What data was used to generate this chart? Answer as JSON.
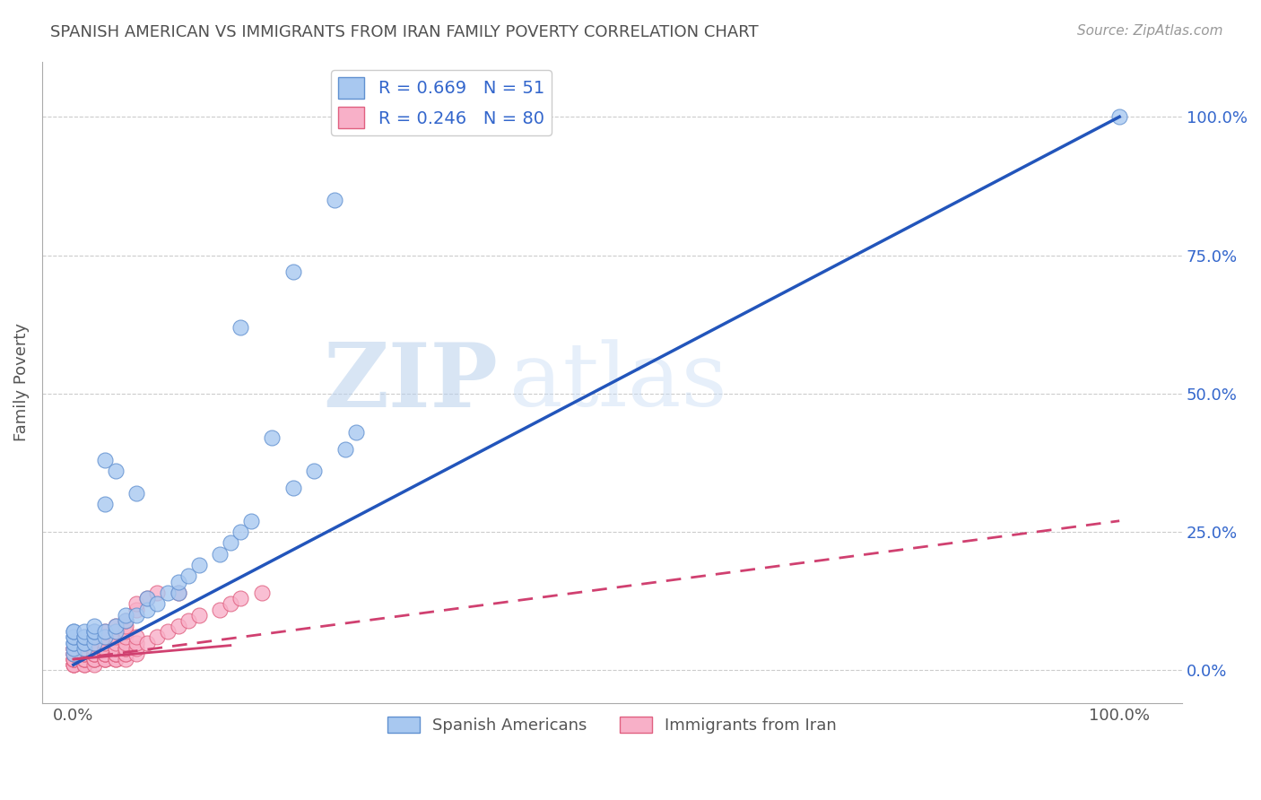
{
  "title": "SPANISH AMERICAN VS IMMIGRANTS FROM IRAN FAMILY POVERTY CORRELATION CHART",
  "source_text": "Source: ZipAtlas.com",
  "ylabel": "Family Poverty",
  "watermark_zip": "ZIP",
  "watermark_atlas": "atlas",
  "blue_R": 0.669,
  "blue_N": 51,
  "pink_R": 0.246,
  "pink_N": 80,
  "blue_color": "#A8C8F0",
  "blue_edge": "#6090D0",
  "pink_color": "#F8B0C8",
  "pink_edge": "#E06080",
  "blue_line_color": "#2255BB",
  "pink_line_color": "#D04070",
  "pink_line_dash_color": "#D06080",
  "background_color": "#FFFFFF",
  "grid_color": "#CCCCCC",
  "title_color": "#505050",
  "legend_text_color": "#3366CC",
  "ytick_labels_right": [
    "0.0%",
    "25.0%",
    "50.0%",
    "75.0%",
    "100.0%"
  ],
  "ytick_values_right": [
    0.0,
    0.25,
    0.5,
    0.75,
    1.0
  ],
  "xtick_labels": [
    "0.0%",
    "100.0%"
  ],
  "xtick_values": [
    0.0,
    1.0
  ],
  "xlim": [
    -0.03,
    1.06
  ],
  "ylim": [
    -0.06,
    1.1
  ],
  "blue_trend_x0": 0.0,
  "blue_trend_y0": 0.01,
  "blue_trend_x1": 1.0,
  "blue_trend_y1": 1.0,
  "pink_trend_x0": 0.0,
  "pink_trend_y0": 0.02,
  "pink_trend_x1": 1.0,
  "pink_trend_y1": 0.27,
  "blue_x": [
    0.0,
    0.0,
    0.0,
    0.0,
    0.0,
    0.0,
    0.0,
    0.0,
    0.01,
    0.01,
    0.01,
    0.01,
    0.01,
    0.01,
    0.02,
    0.02,
    0.02,
    0.02,
    0.02,
    0.03,
    0.03,
    0.03,
    0.03,
    0.04,
    0.04,
    0.04,
    0.05,
    0.05,
    0.06,
    0.06,
    0.07,
    0.07,
    0.08,
    0.09,
    0.1,
    0.1,
    0.11,
    0.12,
    0.14,
    0.15,
    0.16,
    0.17,
    0.19,
    0.21,
    0.23,
    0.26,
    0.27,
    0.16,
    0.21,
    0.25,
    1.0
  ],
  "blue_y": [
    0.03,
    0.04,
    0.05,
    0.05,
    0.06,
    0.06,
    0.07,
    0.07,
    0.04,
    0.05,
    0.05,
    0.06,
    0.06,
    0.07,
    0.05,
    0.06,
    0.07,
    0.07,
    0.08,
    0.06,
    0.07,
    0.3,
    0.38,
    0.07,
    0.08,
    0.36,
    0.09,
    0.1,
    0.1,
    0.32,
    0.11,
    0.13,
    0.12,
    0.14,
    0.14,
    0.16,
    0.17,
    0.19,
    0.21,
    0.23,
    0.25,
    0.27,
    0.42,
    0.33,
    0.36,
    0.4,
    0.43,
    0.62,
    0.72,
    0.85,
    1.0
  ],
  "pink_x": [
    0.0,
    0.0,
    0.0,
    0.0,
    0.0,
    0.0,
    0.0,
    0.0,
    0.0,
    0.0,
    0.01,
    0.01,
    0.01,
    0.01,
    0.01,
    0.01,
    0.01,
    0.01,
    0.01,
    0.02,
    0.02,
    0.02,
    0.02,
    0.02,
    0.02,
    0.02,
    0.02,
    0.02,
    0.02,
    0.03,
    0.03,
    0.03,
    0.03,
    0.03,
    0.03,
    0.03,
    0.03,
    0.03,
    0.03,
    0.03,
    0.04,
    0.04,
    0.04,
    0.04,
    0.04,
    0.04,
    0.04,
    0.04,
    0.04,
    0.04,
    0.04,
    0.05,
    0.05,
    0.05,
    0.05,
    0.05,
    0.05,
    0.05,
    0.05,
    0.05,
    0.05,
    0.06,
    0.06,
    0.06,
    0.06,
    0.06,
    0.06,
    0.07,
    0.07,
    0.08,
    0.08,
    0.09,
    0.1,
    0.1,
    0.11,
    0.12,
    0.14,
    0.15,
    0.16,
    0.18
  ],
  "pink_y": [
    0.01,
    0.01,
    0.01,
    0.02,
    0.02,
    0.02,
    0.03,
    0.03,
    0.04,
    0.04,
    0.01,
    0.01,
    0.02,
    0.02,
    0.02,
    0.03,
    0.03,
    0.04,
    0.04,
    0.01,
    0.02,
    0.02,
    0.02,
    0.03,
    0.03,
    0.03,
    0.04,
    0.04,
    0.05,
    0.02,
    0.02,
    0.02,
    0.03,
    0.03,
    0.03,
    0.04,
    0.04,
    0.05,
    0.06,
    0.07,
    0.02,
    0.02,
    0.03,
    0.03,
    0.03,
    0.04,
    0.04,
    0.05,
    0.06,
    0.07,
    0.08,
    0.02,
    0.03,
    0.03,
    0.04,
    0.04,
    0.05,
    0.06,
    0.07,
    0.08,
    0.09,
    0.03,
    0.04,
    0.05,
    0.06,
    0.11,
    0.12,
    0.05,
    0.13,
    0.06,
    0.14,
    0.07,
    0.08,
    0.14,
    0.09,
    0.1,
    0.11,
    0.12,
    0.13,
    0.14
  ]
}
